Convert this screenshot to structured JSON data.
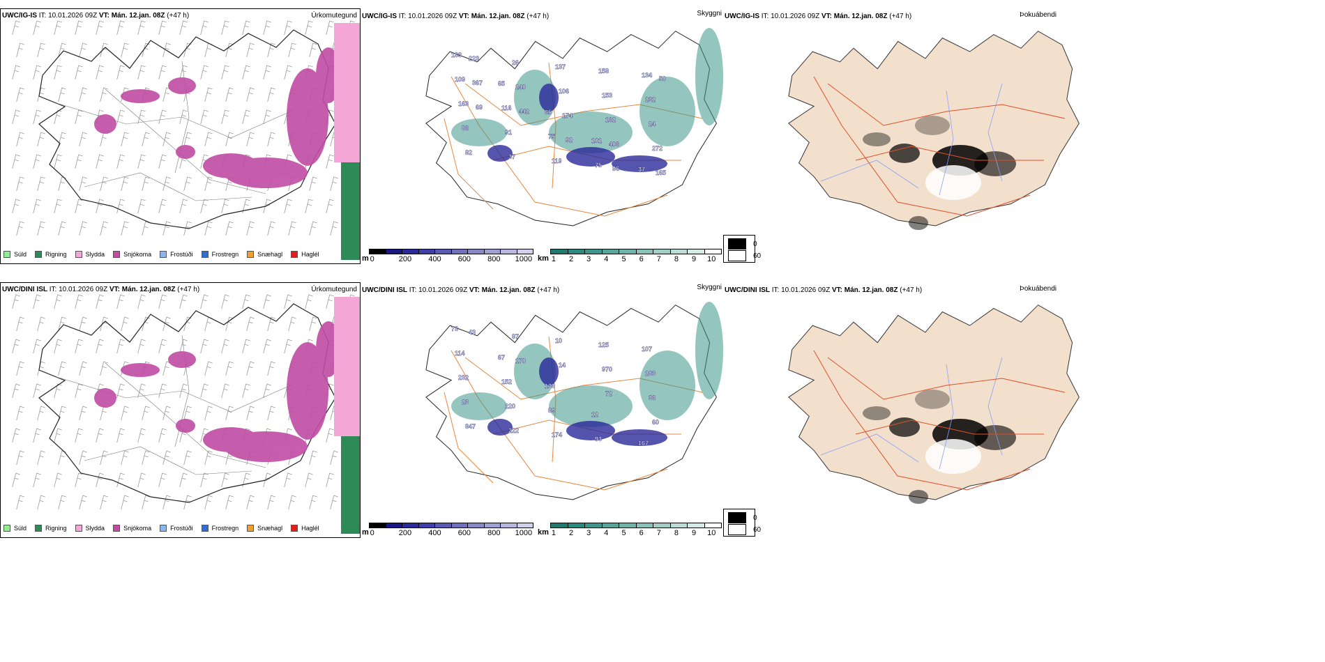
{
  "rows": [
    {
      "model": "UWC/IG-IS",
      "precip": {
        "header_it_label": "IT:",
        "header_it": "10.01.2026 09Z",
        "header_vt_label": "VT:",
        "header_vt": "Mán. 12.jan. 08Z",
        "header_lead": "(+47 h)",
        "param": "Úrkomutegund"
      },
      "vis": {
        "header_it_label": "IT:",
        "header_it": "10.01.2026 09Z",
        "header_vt_label": "VT:",
        "header_vt": "Mán. 12.jan. 08Z",
        "header_lead": "(+47 h)",
        "param": "Skyggni",
        "labels": [
          "183",
          "65",
          "65",
          "101",
          "37",
          "109",
          "116",
          "75",
          "75",
          "134",
          "163",
          "91",
          "119",
          "158",
          "232",
          "86",
          "37",
          "137",
          "153",
          "24",
          "82",
          "26",
          "106",
          "162",
          "272",
          "223",
          "240",
          "174",
          "406",
          "165",
          "367",
          "442",
          "92",
          "96",
          "50",
          "69"
        ]
      },
      "fog": {
        "header_it_label": "IT:",
        "header_it": "10.01.2026 09Z",
        "header_vt_label": "VT:",
        "header_vt": "Mán. 12.jan. 08Z",
        "header_lead": "(+47 h)",
        "param": "Þokuábendi"
      }
    },
    {
      "model": "UWC/DINI ISL",
      "precip": {
        "header_it_label": "IT:",
        "header_it": "10.01.2026 09Z",
        "header_vt_label": "VT:",
        "header_vt": "Mán. 12.jan. 08Z",
        "header_lead": "(+47 h)",
        "param": "Úrkomutegund"
      },
      "vis": {
        "header_it_label": "IT:",
        "header_it": "10.01.2026 09Z",
        "header_vt_label": "VT:",
        "header_vt": "Mán. 12.jan. 08Z",
        "header_lead": "(+47 h)",
        "param": "Skyggni",
        "labels": [
          "73",
          "67",
          "133",
          "12",
          "167",
          "114",
          "152",
          "89",
          "93",
          "107",
          "232",
          "220",
          "174",
          "125",
          "283",
          "23",
          "222",
          "10",
          "970",
          "36",
          "847",
          "87",
          "14",
          "72",
          "60",
          "43",
          "170"
        ]
      },
      "fog": {
        "header_it_label": "IT:",
        "header_it": "10.01.2026 09Z",
        "header_vt_label": "VT:",
        "header_vt": "Mán. 12.jan. 08Z",
        "header_lead": "(+47 h)",
        "param": "Þokuábendi"
      }
    }
  ],
  "precip_legend": [
    {
      "label": "Súld",
      "color": "#90ee90"
    },
    {
      "label": "Rigning",
      "color": "#2e8b57"
    },
    {
      "label": "Slydda",
      "color": "#f4a6d7"
    },
    {
      "label": "Snjókoma",
      "color": "#c04ca4"
    },
    {
      "label": "Frostúði",
      "color": "#87b7ec"
    },
    {
      "label": "Frostregn",
      "color": "#2f6fcf"
    },
    {
      "label": "Snæhagl",
      "color": "#f0a030"
    },
    {
      "label": "Haglél",
      "color": "#e41c1c"
    }
  ],
  "ceiling_bar": {
    "unit": "m",
    "ticks": [
      "0",
      "200",
      "400",
      "600",
      "800",
      "1000"
    ],
    "colors": [
      "#000000",
      "#181880",
      "#2a2a9a",
      "#4040a8",
      "#5a5ab4",
      "#7070bf",
      "#8888c8",
      "#a0a0d4",
      "#b8b8de",
      "#d0d0ea"
    ]
  },
  "vis_bar": {
    "unit": "km",
    "ticks": [
      "1",
      "2",
      "3",
      "4",
      "5",
      "6",
      "7",
      "8",
      "9",
      "10"
    ],
    "colors": [
      "#1f7a70",
      "#2a8a80",
      "#3d978c",
      "#57a69b",
      "#6fb4a9",
      "#88c2b8",
      "#a1cfc6",
      "#bbddd5",
      "#d4eae4",
      "#ffffff"
    ]
  },
  "fog_legend": {
    "values": [
      "0",
      "60"
    ],
    "colors": [
      "#000000",
      "#ffffff"
    ]
  }
}
